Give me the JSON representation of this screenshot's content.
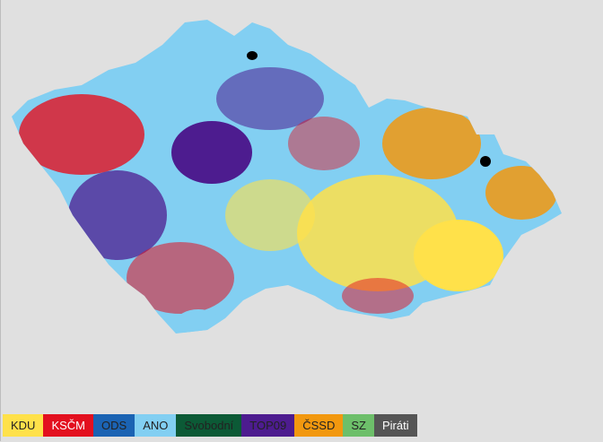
{
  "legend": {
    "items": [
      {
        "label": "KDU",
        "color": "#ffe14a"
      },
      {
        "label": "KSČM",
        "color": "#e3101f"
      },
      {
        "label": "ODS",
        "color": "#1b63b3"
      },
      {
        "label": "ANO",
        "color": "#82cff2"
      },
      {
        "label": "Svobodní",
        "color": "#0c5a36"
      },
      {
        "label": "TOP09",
        "color": "#4d1c8f"
      },
      {
        "label": "ČSSD",
        "color": "#f2980f"
      },
      {
        "label": "SZ",
        "color": "#6dbf6a"
      },
      {
        "label": "Piráti",
        "color": "#555555"
      }
    ]
  }
}
